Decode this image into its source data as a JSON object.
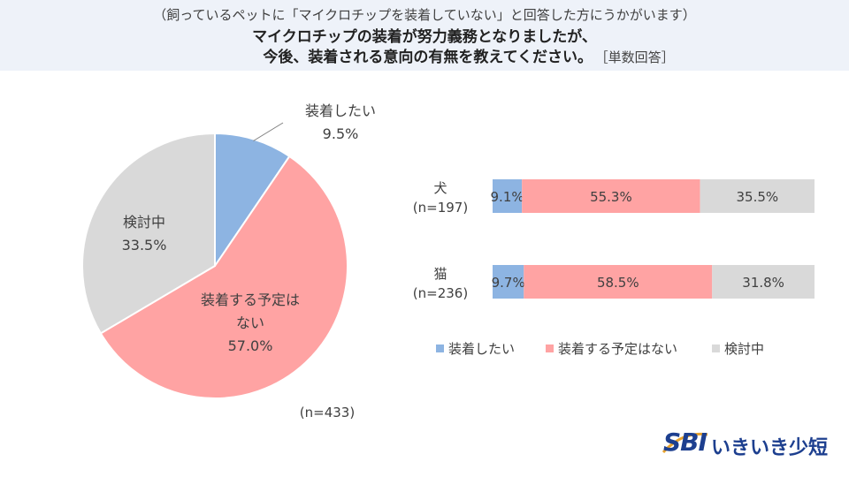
{
  "header": {
    "subtitle": "（飼っているペットに「マイクロチップを装着していない」と回答した方にうかがいます）",
    "title_line1": "マイクロチップの装着が努力義務となりましたが、",
    "title_line2": "今後、装着される意向の有無を教えてください。",
    "answer_type": "［単数回答］"
  },
  "logo": {
    "mark": "SBI",
    "name": "いきいき少短"
  },
  "chart_data": [
    {
      "type": "pie",
      "slices": [
        {
          "label": "装着したい",
          "value": 9.5,
          "display": "9.5%",
          "color": "#8db4e2"
        },
        {
          "label": "装着する予定はない",
          "label_lines": [
            "装着する予定は",
            "ない"
          ],
          "value": 57.0,
          "display": "57.0%",
          "color": "#ffa3a3"
        },
        {
          "label": "検討中",
          "value": 33.5,
          "display": "33.5%",
          "color": "#d9d9d9"
        }
      ],
      "note": "(n=433)"
    },
    {
      "type": "bar",
      "orientation": "horizontal",
      "stacked": "100%",
      "categories": [
        {
          "name": "犬",
          "n": "(n=197)"
        },
        {
          "name": "猫",
          "n": "(n=236)"
        }
      ],
      "series": [
        {
          "name": "装着したい",
          "color": "#8db4e2",
          "values": [
            9.1,
            9.7
          ],
          "labels": [
            "9.1%",
            "9.7%"
          ]
        },
        {
          "name": "装着する予定はない",
          "color": "#ffa3a3",
          "values": [
            55.3,
            58.5
          ],
          "labels": [
            "55.3%",
            "58.5%"
          ]
        },
        {
          "name": "検討中",
          "color": "#d9d9d9",
          "values": [
            35.5,
            31.8
          ],
          "labels": [
            "35.5%",
            "31.8%"
          ]
        }
      ],
      "legend_position": "bottom"
    }
  ]
}
